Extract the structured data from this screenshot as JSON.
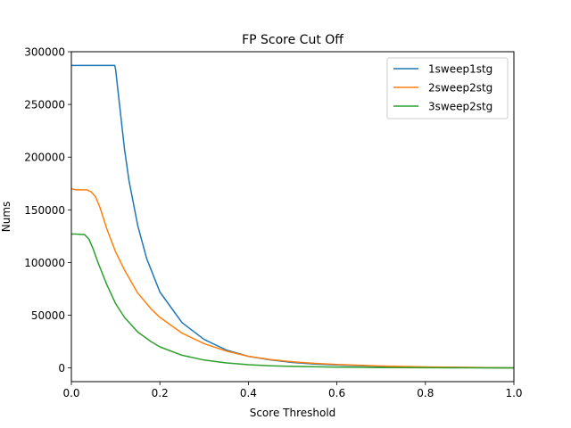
{
  "chart_data": {
    "type": "line",
    "title": "FP Score Cut Off",
    "xlabel": "Score Threshold",
    "ylabel": "Nums",
    "xlim": [
      0.0,
      1.0
    ],
    "ylim": [
      -13000,
      300000
    ],
    "xticks": [
      0.0,
      0.2,
      0.4,
      0.6,
      0.8,
      1.0
    ],
    "xtick_labels": [
      "0.0",
      "0.2",
      "0.4",
      "0.6",
      "0.8",
      "1.0"
    ],
    "yticks": [
      0,
      50000,
      100000,
      150000,
      200000,
      250000,
      300000
    ],
    "ytick_labels": [
      "0",
      "50000",
      "100000",
      "150000",
      "200000",
      "250000",
      "300000"
    ],
    "grid": false,
    "legend_position": "top-right",
    "series": [
      {
        "name": "1sweep1stg",
        "color": "#1f77b4",
        "x": [
          0.0,
          0.05,
          0.098,
          0.1,
          0.11,
          0.12,
          0.13,
          0.15,
          0.17,
          0.2,
          0.25,
          0.3,
          0.35,
          0.4,
          0.45,
          0.5,
          0.55,
          0.6,
          0.7,
          0.8,
          0.9,
          1.0
        ],
        "y": [
          287000,
          287000,
          287000,
          283000,
          245000,
          208000,
          178000,
          135000,
          104000,
          72000,
          43000,
          27000,
          17000,
          11000,
          7600,
          5200,
          3700,
          2700,
          1500,
          800,
          400,
          0
        ]
      },
      {
        "name": "2sweep2stg",
        "color": "#ff7f0e",
        "x": [
          0.0,
          0.01,
          0.035,
          0.045,
          0.055,
          0.065,
          0.08,
          0.1,
          0.12,
          0.15,
          0.18,
          0.2,
          0.25,
          0.3,
          0.35,
          0.4,
          0.45,
          0.5,
          0.55,
          0.6,
          0.7,
          0.8,
          0.9,
          1.0
        ],
        "y": [
          170000,
          169000,
          169000,
          167000,
          162000,
          152000,
          132000,
          110000,
          93000,
          71000,
          56000,
          48000,
          33000,
          23000,
          16000,
          11000,
          8000,
          5800,
          4300,
          3200,
          1800,
          1000,
          500,
          0
        ]
      },
      {
        "name": "3sweep2stg",
        "color": "#2ca02c",
        "x": [
          0.0,
          0.01,
          0.03,
          0.04,
          0.05,
          0.06,
          0.08,
          0.1,
          0.12,
          0.15,
          0.18,
          0.2,
          0.25,
          0.3,
          0.35,
          0.4,
          0.45,
          0.5,
          0.6,
          0.7,
          0.8,
          0.9,
          1.0
        ],
        "y": [
          127000,
          127000,
          126500,
          122000,
          112000,
          100000,
          79000,
          61000,
          48000,
          34000,
          25000,
          20000,
          12000,
          7500,
          4800,
          3100,
          2100,
          1500,
          800,
          400,
          200,
          100,
          0
        ]
      }
    ]
  }
}
